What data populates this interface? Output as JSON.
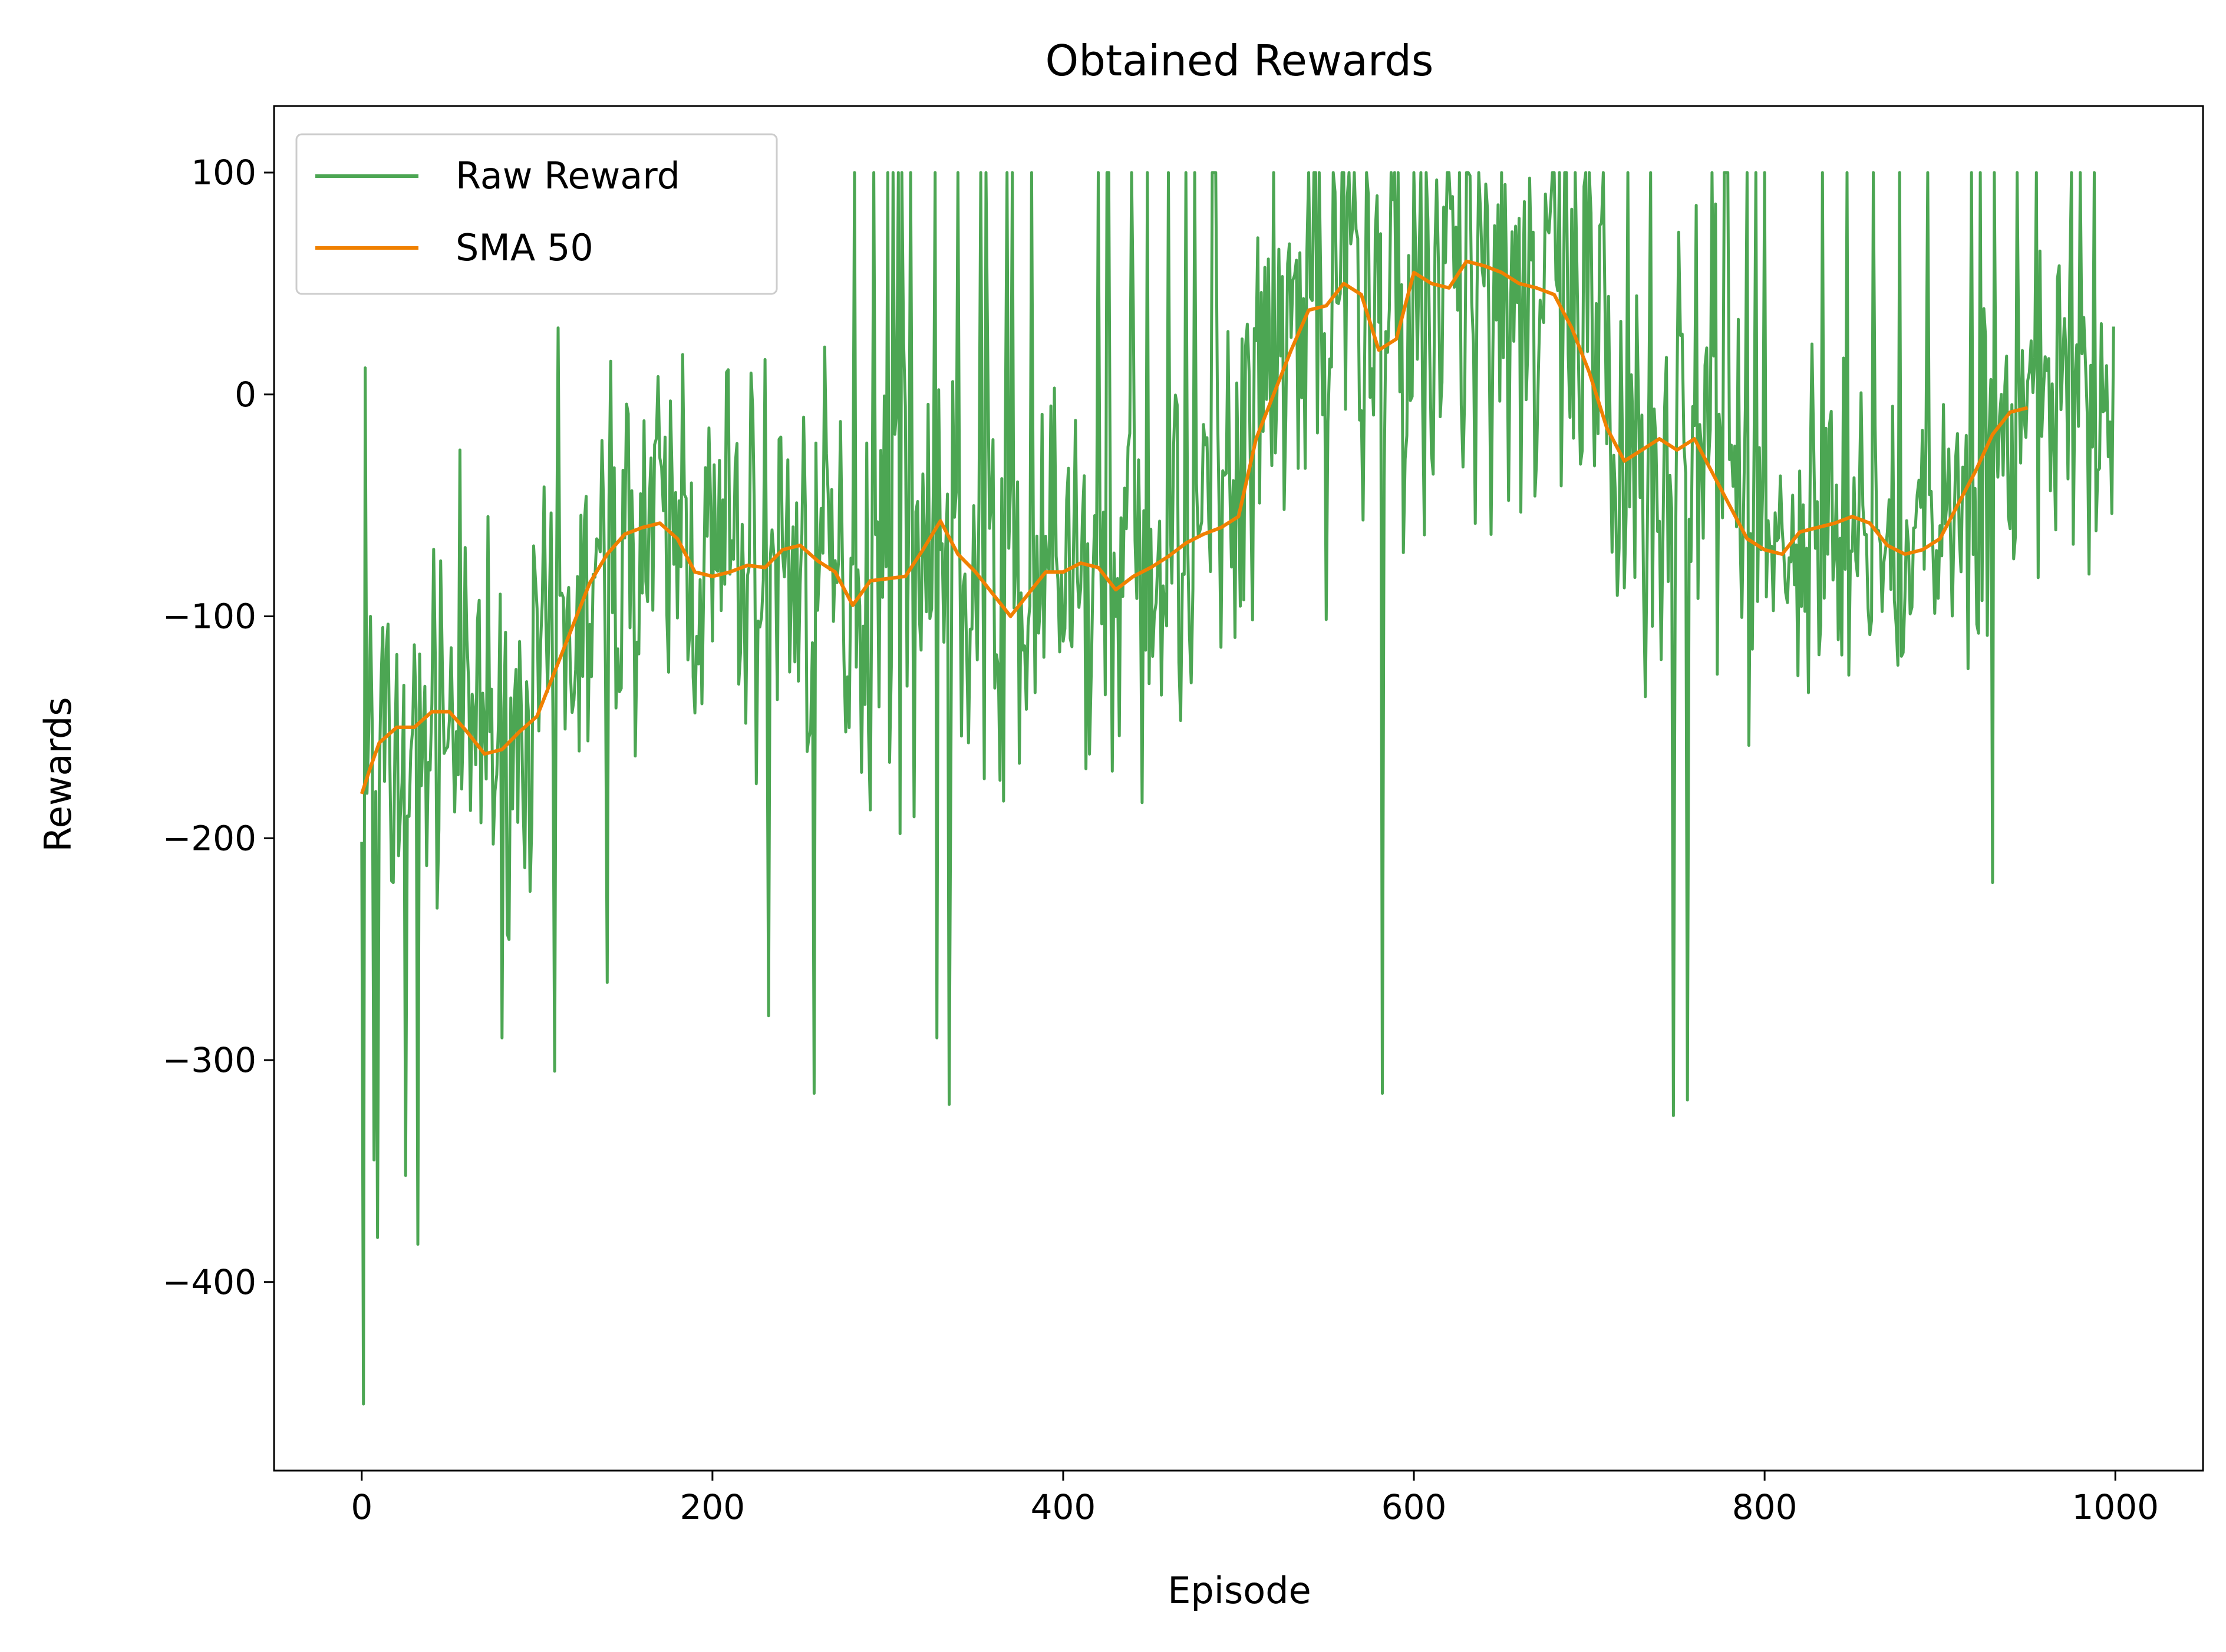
{
  "chart_data": {
    "type": "line",
    "title": "Obtained Rewards",
    "xlabel": "Episode",
    "ylabel": "Rewards",
    "xlim": [
      -50,
      1050
    ],
    "ylim": [
      -485,
      130
    ],
    "xticks": [
      0,
      200,
      400,
      600,
      800,
      1000
    ],
    "yticks": [
      100,
      0,
      -100,
      -200,
      -300,
      -400
    ],
    "legend_position": "upper-left",
    "grid": false,
    "series": [
      {
        "name": "Raw Reward",
        "color": "#4ca653",
        "seed": 7,
        "anchors": [
          [
            0,
            -180,
            70
          ],
          [
            40,
            -150,
            65
          ],
          [
            80,
            -160,
            65
          ],
          [
            120,
            -110,
            70
          ],
          [
            160,
            -60,
            75
          ],
          [
            200,
            -80,
            80
          ],
          [
            240,
            -72,
            85
          ],
          [
            280,
            -90,
            85
          ],
          [
            320,
            -70,
            90
          ],
          [
            370,
            -95,
            85
          ],
          [
            420,
            -78,
            85
          ],
          [
            470,
            -66,
            90
          ],
          [
            500,
            -55,
            95
          ],
          [
            520,
            10,
            100
          ],
          [
            560,
            40,
            100
          ],
          [
            600,
            45,
            100
          ],
          [
            640,
            58,
            100
          ],
          [
            680,
            45,
            100
          ],
          [
            720,
            -30,
            95
          ],
          [
            760,
            -25,
            90
          ],
          [
            800,
            -72,
            75
          ],
          [
            840,
            -60,
            65
          ],
          [
            880,
            -72,
            60
          ],
          [
            920,
            -40,
            65
          ],
          [
            960,
            -5,
            65
          ],
          [
            999,
            -20,
            70
          ]
        ],
        "spikes": [
          [
            1,
            -455
          ],
          [
            2,
            12
          ],
          [
            5,
            -100
          ],
          [
            7,
            -345
          ],
          [
            9,
            -380
          ],
          [
            12,
            -105
          ],
          [
            18,
            -220
          ],
          [
            25,
            -352
          ],
          [
            32,
            -383
          ],
          [
            45,
            -75
          ],
          [
            56,
            -25
          ],
          [
            72,
            -55
          ],
          [
            80,
            -290
          ],
          [
            110,
            -305
          ],
          [
            112,
            30
          ],
          [
            140,
            -265
          ],
          [
            142,
            15
          ],
          [
            183,
            18
          ],
          [
            208,
            10
          ],
          [
            232,
            -280
          ],
          [
            258,
            80
          ],
          [
            258,
            -315
          ],
          [
            292,
            100
          ],
          [
            300,
            100
          ],
          [
            335,
            -320
          ],
          [
            328,
            -290
          ],
          [
            340,
            100
          ],
          [
            353,
            100
          ],
          [
            368,
            100
          ],
          [
            420,
            100
          ],
          [
            460,
            100
          ],
          [
            470,
            100
          ],
          [
            485,
            100
          ],
          [
            540,
            100
          ],
          [
            560,
            100
          ],
          [
            582,
            -315
          ],
          [
            600,
            100
          ],
          [
            620,
            100
          ],
          [
            650,
            100
          ],
          [
            700,
            100
          ],
          [
            722,
            100
          ],
          [
            735,
            100
          ],
          [
            748,
            -325
          ],
          [
            756,
            -318
          ],
          [
            770,
            100
          ],
          [
            790,
            100
          ],
          [
            800,
            100
          ],
          [
            862,
            100
          ],
          [
            918,
            100
          ],
          [
            930,
            -220
          ],
          [
            955,
            100
          ],
          [
            975,
            100
          ],
          [
            988,
            100
          ]
        ]
      },
      {
        "name": "SMA 50",
        "color": "#f08000",
        "points": [
          [
            0,
            -180
          ],
          [
            5,
            -168
          ],
          [
            10,
            -157
          ],
          [
            20,
            -150
          ],
          [
            30,
            -150
          ],
          [
            40,
            -143
          ],
          [
            50,
            -143
          ],
          [
            60,
            -152
          ],
          [
            70,
            -162
          ],
          [
            80,
            -160
          ],
          [
            90,
            -152
          ],
          [
            100,
            -145
          ],
          [
            110,
            -125
          ],
          [
            120,
            -105
          ],
          [
            130,
            -85
          ],
          [
            140,
            -72
          ],
          [
            150,
            -63
          ],
          [
            160,
            -60
          ],
          [
            170,
            -58
          ],
          [
            180,
            -65
          ],
          [
            190,
            -80
          ],
          [
            200,
            -82
          ],
          [
            210,
            -80
          ],
          [
            220,
            -77
          ],
          [
            230,
            -78
          ],
          [
            240,
            -70
          ],
          [
            250,
            -68
          ],
          [
            260,
            -75
          ],
          [
            270,
            -80
          ],
          [
            280,
            -95
          ],
          [
            290,
            -84
          ],
          [
            300,
            -83
          ],
          [
            310,
            -82
          ],
          [
            320,
            -70
          ],
          [
            330,
            -57
          ],
          [
            340,
            -72
          ],
          [
            350,
            -80
          ],
          [
            360,
            -90
          ],
          [
            370,
            -100
          ],
          [
            380,
            -90
          ],
          [
            390,
            -80
          ],
          [
            400,
            -80
          ],
          [
            410,
            -76
          ],
          [
            420,
            -78
          ],
          [
            430,
            -88
          ],
          [
            440,
            -82
          ],
          [
            450,
            -78
          ],
          [
            460,
            -73
          ],
          [
            470,
            -67
          ],
          [
            480,
            -63
          ],
          [
            490,
            -60
          ],
          [
            500,
            -55
          ],
          [
            510,
            -20
          ],
          [
            520,
            0
          ],
          [
            530,
            20
          ],
          [
            540,
            38
          ],
          [
            550,
            40
          ],
          [
            560,
            50
          ],
          [
            570,
            45
          ],
          [
            580,
            20
          ],
          [
            590,
            25
          ],
          [
            600,
            55
          ],
          [
            610,
            50
          ],
          [
            620,
            48
          ],
          [
            630,
            60
          ],
          [
            640,
            58
          ],
          [
            650,
            55
          ],
          [
            660,
            50
          ],
          [
            670,
            48
          ],
          [
            680,
            45
          ],
          [
            690,
            30
          ],
          [
            700,
            10
          ],
          [
            710,
            -15
          ],
          [
            720,
            -30
          ],
          [
            730,
            -25
          ],
          [
            740,
            -20
          ],
          [
            750,
            -25
          ],
          [
            760,
            -20
          ],
          [
            770,
            -35
          ],
          [
            780,
            -50
          ],
          [
            790,
            -65
          ],
          [
            800,
            -70
          ],
          [
            810,
            -72
          ],
          [
            820,
            -62
          ],
          [
            830,
            -60
          ],
          [
            840,
            -58
          ],
          [
            850,
            -55
          ],
          [
            860,
            -58
          ],
          [
            870,
            -68
          ],
          [
            880,
            -72
          ],
          [
            890,
            -70
          ],
          [
            900,
            -65
          ],
          [
            910,
            -50
          ],
          [
            920,
            -35
          ],
          [
            930,
            -18
          ],
          [
            940,
            -8
          ],
          [
            950,
            -6
          ]
        ]
      }
    ]
  }
}
